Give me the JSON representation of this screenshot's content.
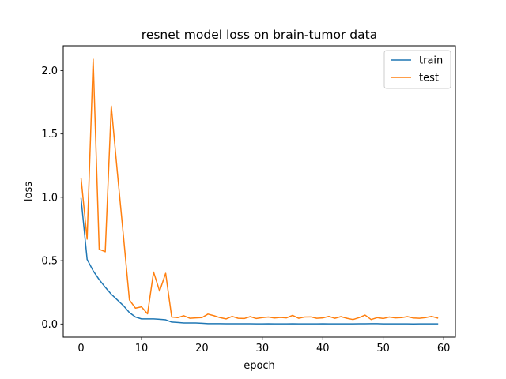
{
  "chart_data": {
    "type": "line",
    "title": "resnet model loss on brain-tumor data",
    "xlabel": "epoch",
    "ylabel": "loss",
    "xlim": [
      -2.95,
      61.95
    ],
    "ylim": [
      -0.104,
      2.196
    ],
    "xticks": [
      0,
      10,
      20,
      30,
      40,
      50,
      60
    ],
    "xtick_labels": [
      "0",
      "10",
      "20",
      "30",
      "40",
      "50",
      "60"
    ],
    "yticks": [
      0.0,
      0.5,
      1.0,
      1.5,
      2.0
    ],
    "ytick_labels": [
      "0.0",
      "0.5",
      "1.0",
      "1.5",
      "2.0"
    ],
    "grid": false,
    "legend_position": "top-right",
    "x": [
      0,
      1,
      2,
      3,
      4,
      5,
      6,
      7,
      8,
      9,
      10,
      11,
      12,
      13,
      14,
      15,
      16,
      17,
      18,
      19,
      20,
      21,
      22,
      23,
      24,
      25,
      26,
      27,
      28,
      29,
      30,
      31,
      32,
      33,
      34,
      35,
      36,
      37,
      38,
      39,
      40,
      41,
      42,
      43,
      44,
      45,
      46,
      47,
      48,
      49,
      50,
      51,
      52,
      53,
      54,
      55,
      56,
      57,
      58,
      59
    ],
    "series": [
      {
        "name": "train",
        "color": "#1f77b4",
        "values": [
          0.99,
          0.51,
          0.42,
          0.35,
          0.29,
          0.235,
          0.19,
          0.145,
          0.09,
          0.055,
          0.04,
          0.04,
          0.04,
          0.037,
          0.033,
          0.015,
          0.012,
          0.008,
          0.008,
          0.008,
          0.006,
          0.003,
          0.003,
          0.003,
          0.002,
          0.002,
          0.002,
          0.002,
          0.002,
          0.001,
          0.001,
          0.002,
          0.001,
          0.001,
          0.001,
          0.002,
          0.001,
          0.001,
          0.001,
          0.001,
          0.002,
          0.001,
          0.001,
          0.001,
          0.001,
          0.001,
          0.002,
          0.002,
          0.003,
          0.003,
          0.001,
          0.001,
          0.001,
          0.001,
          0.001,
          0.0,
          0.001,
          0.001,
          0.001,
          0.001
        ]
      },
      {
        "name": "test",
        "color": "#ff7f0e",
        "values": [
          1.15,
          0.67,
          2.09,
          0.59,
          0.57,
          1.72,
          1.2,
          0.7,
          0.19,
          0.125,
          0.135,
          0.08,
          0.41,
          0.26,
          0.4,
          0.055,
          0.05,
          0.065,
          0.045,
          0.048,
          0.05,
          0.078,
          0.065,
          0.05,
          0.04,
          0.06,
          0.045,
          0.043,
          0.058,
          0.043,
          0.05,
          0.055,
          0.047,
          0.052,
          0.048,
          0.068,
          0.045,
          0.055,
          0.056,
          0.045,
          0.048,
          0.06,
          0.045,
          0.058,
          0.045,
          0.035,
          0.05,
          0.07,
          0.035,
          0.05,
          0.043,
          0.055,
          0.048,
          0.05,
          0.058,
          0.047,
          0.045,
          0.05,
          0.06,
          0.047
        ]
      }
    ]
  }
}
